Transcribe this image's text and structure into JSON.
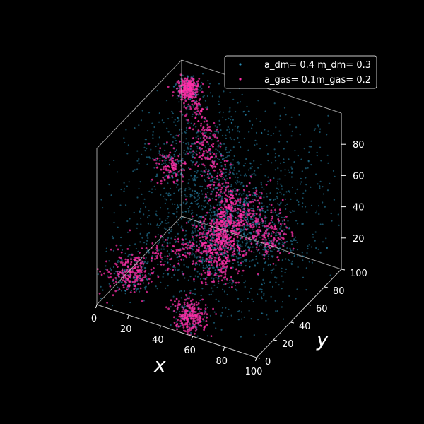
{
  "chart_data": {
    "type": "scatter",
    "projection": "3d",
    "title": "",
    "xlabel": "x",
    "ylabel": "y",
    "zlabel": "",
    "xlim": [
      0,
      100
    ],
    "ylim": [
      0,
      100
    ],
    "zlim": [
      0,
      100
    ],
    "x_ticks": [
      "0",
      "20",
      "40",
      "60",
      "80",
      "100"
    ],
    "y_ticks": [
      "0",
      "20",
      "40",
      "60",
      "80",
      "100"
    ],
    "z_ticks": [
      "20",
      "40",
      "60",
      "80"
    ],
    "grid": false,
    "legend_position": "top-right",
    "colors": {
      "background": "#000000",
      "dark_matter": "#2a8fb8",
      "gas": "#ff2fa8",
      "axis": "#c8c8c8"
    },
    "series": [
      {
        "name": "a_dm= 0.4 m_dm= 0.3",
        "color": "#2a8fb8",
        "marker_size": 0.4,
        "point_count": 2600,
        "structure": "diffuse cloud filling the 100×100×100 volume, denser along the central filament"
      },
      {
        "name": "a_gas= 0.1m_gas= 0.2",
        "color": "#ff2fa8",
        "marker_size": 0.1,
        "point_count": 1800,
        "structure": "filaments and dense clumps along the cosmic web"
      }
    ],
    "clumps": [
      {
        "x": 12,
        "y": 85,
        "z": 95,
        "spread": 3,
        "weight": 0.1
      },
      {
        "x": 55,
        "y": 5,
        "z": 8,
        "spread": 5,
        "weight": 0.09
      },
      {
        "x": 45,
        "y": 55,
        "z": 15,
        "spread": 8,
        "weight": 0.1
      },
      {
        "x": 15,
        "y": 8,
        "z": 20,
        "spread": 6,
        "weight": 0.07
      },
      {
        "x": 20,
        "y": 50,
        "z": 68,
        "spread": 5,
        "weight": 0.05
      },
      {
        "x": 88,
        "y": 40,
        "z": 50,
        "spread": 6,
        "weight": 0.05
      },
      {
        "x": 55,
        "y": 65,
        "z": 40,
        "spread": 9,
        "weight": 0.1
      }
    ],
    "filaments": [
      {
        "from": [
          12,
          85,
          95
        ],
        "to": [
          55,
          55,
          40
        ],
        "weight": 0.14
      },
      {
        "from": [
          55,
          55,
          40
        ],
        "to": [
          45,
          55,
          15
        ],
        "weight": 0.07
      },
      {
        "from": [
          55,
          55,
          40
        ],
        "to": [
          15,
          8,
          20
        ],
        "weight": 0.08
      },
      {
        "from": [
          55,
          55,
          40
        ],
        "to": [
          88,
          40,
          50
        ],
        "weight": 0.06
      },
      {
        "from": [
          20,
          50,
          68
        ],
        "to": [
          55,
          55,
          40
        ],
        "weight": 0.05
      }
    ]
  }
}
